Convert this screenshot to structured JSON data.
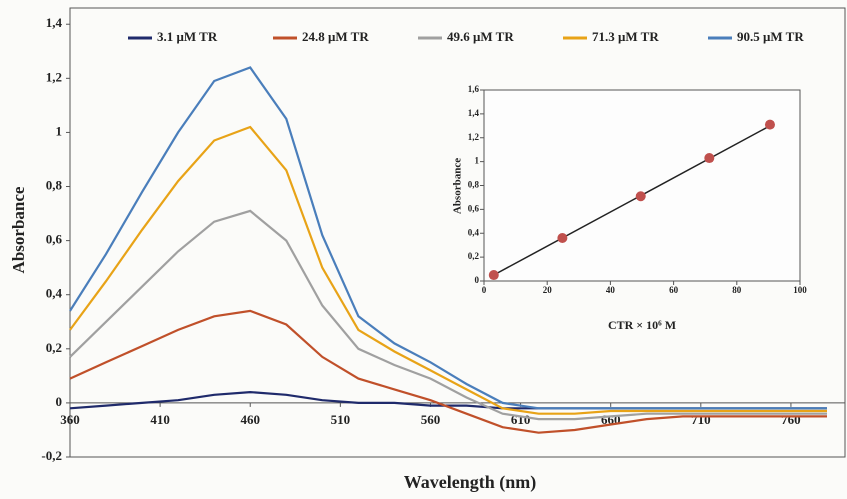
{
  "chart_data": [
    {
      "type": "line",
      "xlabel": "Wavelength (nm)",
      "ylabel": "Absorbance",
      "x": [
        360,
        380,
        400,
        420,
        440,
        460,
        480,
        500,
        520,
        540,
        560,
        580,
        600,
        620,
        640,
        660,
        680,
        700,
        720,
        740,
        760,
        780
      ],
      "series": [
        {
          "name": "3.1 μM TR",
          "color": "#1f2a6b",
          "values": [
            -0.02,
            -0.01,
            0.0,
            0.01,
            0.03,
            0.04,
            0.03,
            0.01,
            0.0,
            0.0,
            -0.01,
            -0.01,
            -0.02,
            -0.02,
            -0.02,
            -0.02,
            -0.02,
            -0.02,
            -0.02,
            -0.02,
            -0.02,
            -0.02
          ]
        },
        {
          "name": "24.8 μM TR",
          "color": "#c0502a",
          "values": [
            0.09,
            0.15,
            0.21,
            0.27,
            0.32,
            0.34,
            0.29,
            0.17,
            0.09,
            0.05,
            0.01,
            -0.04,
            -0.09,
            -0.11,
            -0.1,
            -0.08,
            -0.06,
            -0.05,
            -0.05,
            -0.05,
            -0.05,
            -0.05
          ]
        },
        {
          "name": "49.6 μM TR",
          "color": "#a0a0a0",
          "values": [
            0.17,
            0.3,
            0.43,
            0.56,
            0.67,
            0.71,
            0.6,
            0.36,
            0.2,
            0.14,
            0.09,
            0.02,
            -0.04,
            -0.06,
            -0.06,
            -0.05,
            -0.04,
            -0.04,
            -0.04,
            -0.04,
            -0.04,
            -0.04
          ]
        },
        {
          "name": "71.3 μM TR",
          "color": "#e8a317",
          "values": [
            0.27,
            0.45,
            0.64,
            0.82,
            0.97,
            1.02,
            0.86,
            0.5,
            0.27,
            0.19,
            0.12,
            0.05,
            -0.02,
            -0.04,
            -0.04,
            -0.03,
            -0.03,
            -0.03,
            -0.03,
            -0.03,
            -0.03,
            -0.03
          ]
        },
        {
          "name": "90.5 μM TR",
          "color": "#4a7ebb",
          "values": [
            0.34,
            0.55,
            0.78,
            1.0,
            1.19,
            1.24,
            1.05,
            0.62,
            0.32,
            0.22,
            0.15,
            0.07,
            0.0,
            -0.02,
            -0.02,
            -0.02,
            -0.02,
            -0.02,
            -0.02,
            -0.02,
            -0.02,
            -0.02
          ]
        }
      ],
      "xlim": [
        360,
        790
      ],
      "xticks": [
        360,
        410,
        460,
        510,
        560,
        610,
        660,
        710,
        760
      ],
      "ylim": [
        -0.2,
        1.46
      ],
      "yticks": [
        {
          "value": -0.2,
          "label": "-0,2"
        },
        0,
        {
          "value": 0.2,
          "label": "0,2"
        },
        {
          "value": 0.4,
          "label": "0,4"
        },
        {
          "value": 0.6,
          "label": "0,6"
        },
        {
          "value": 0.8,
          "label": "0,8"
        },
        1,
        {
          "value": 1.2,
          "label": "1,2"
        },
        {
          "value": 1.4,
          "label": "1,4"
        }
      ],
      "legend": "top"
    },
    {
      "type": "scatter",
      "xlabel": "CTR × 10⁶ M",
      "ylabel": "Absorbance",
      "points": {
        "color": "#c0504d",
        "x": [
          3.1,
          24.8,
          49.6,
          71.3,
          90.5
        ],
        "values": [
          0.05,
          0.36,
          0.71,
          1.03,
          1.31
        ]
      },
      "fit": {
        "color": "#222222",
        "x": [
          3.1,
          90.5
        ],
        "values": [
          0.05,
          1.3
        ]
      },
      "xlim": [
        0,
        100
      ],
      "xticks": [
        0,
        20,
        40,
        60,
        80,
        100
      ],
      "ylim": [
        0,
        1.6
      ],
      "yticks": [
        0,
        {
          "value": 0.2,
          "label": "0,2"
        },
        {
          "value": 0.4,
          "label": "0,4"
        },
        {
          "value": 0.6,
          "label": "0,6"
        },
        {
          "value": 0.8,
          "label": "0,8"
        },
        1,
        {
          "value": 1.2,
          "label": "1,2"
        },
        {
          "value": 1.4,
          "label": "1,4"
        },
        {
          "value": 1.6,
          "label": "1,6"
        }
      ]
    }
  ]
}
